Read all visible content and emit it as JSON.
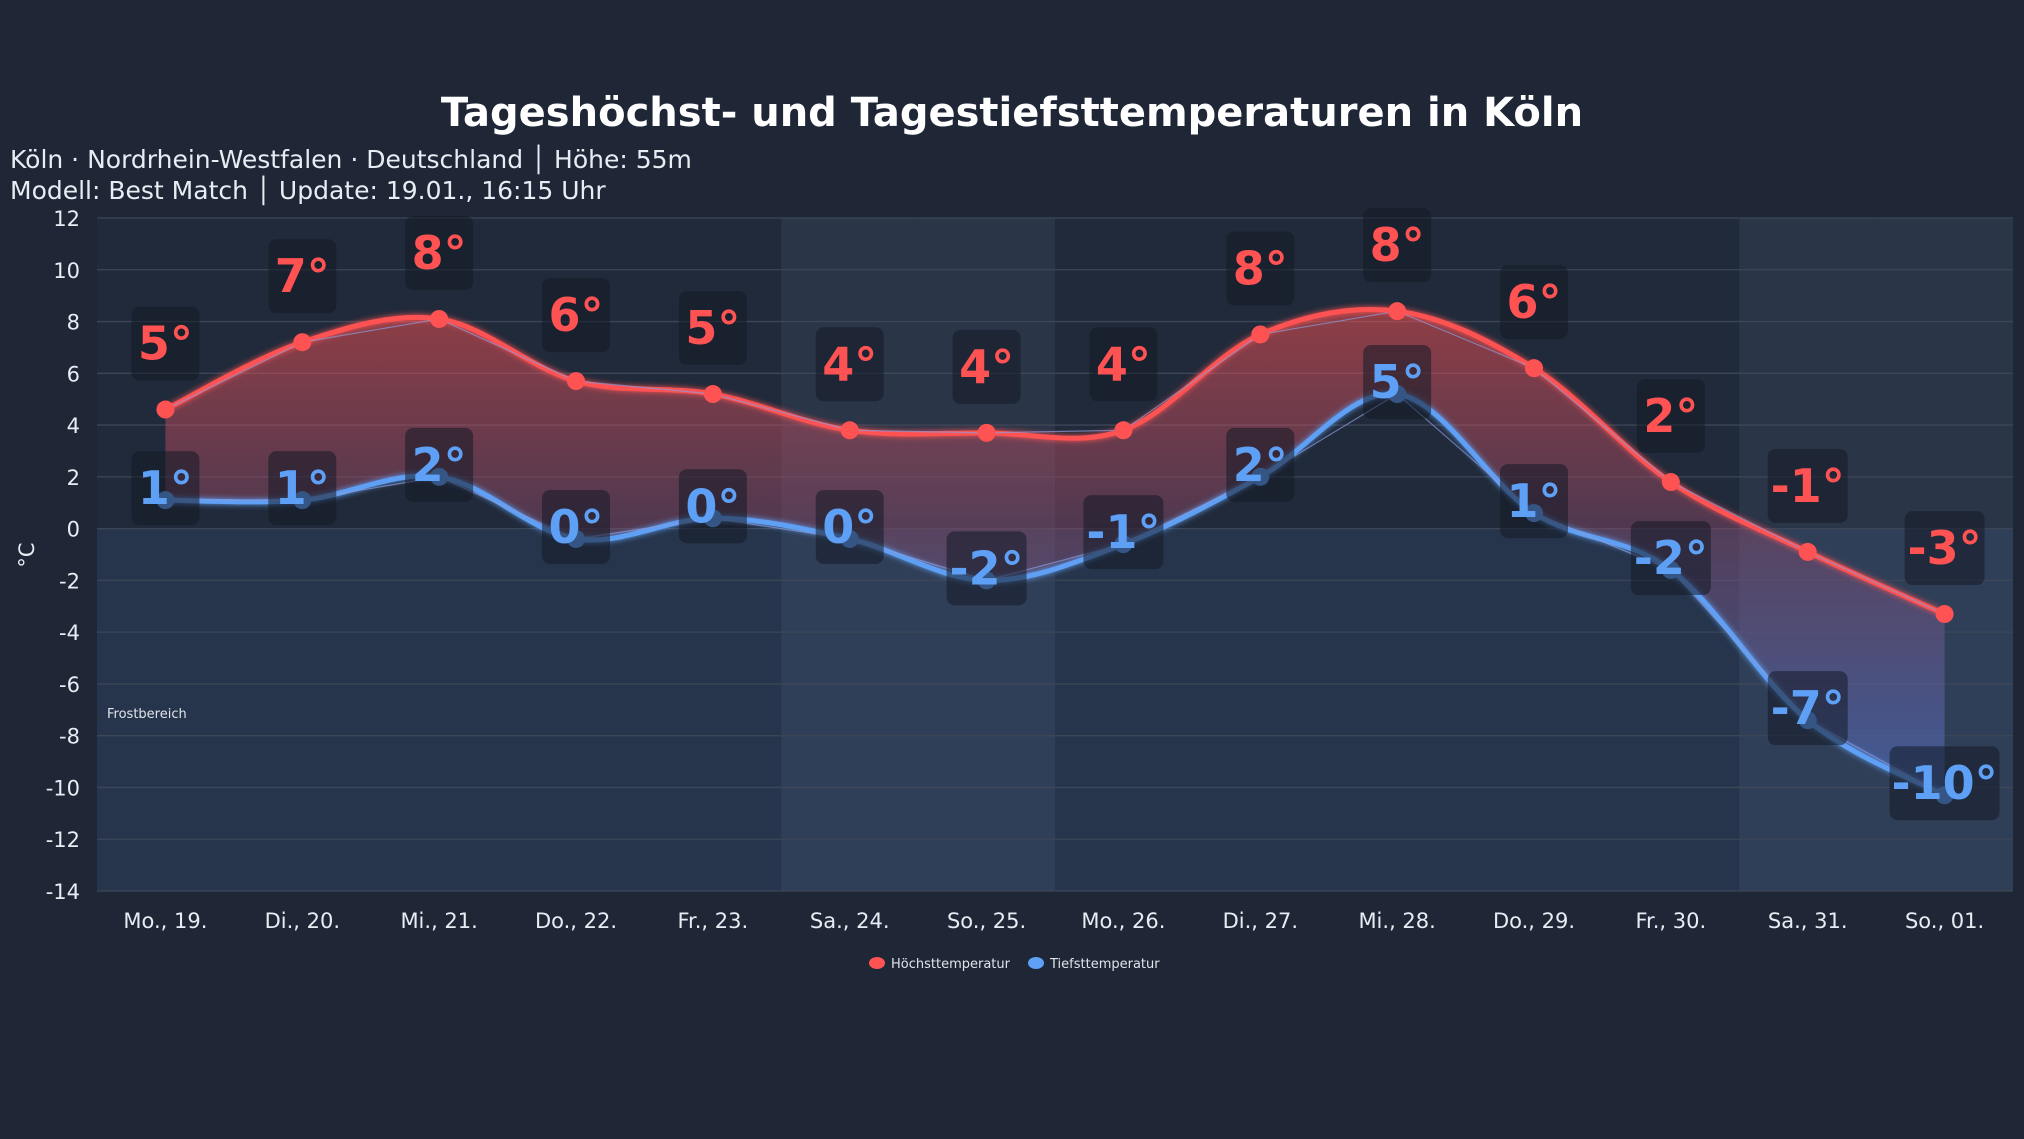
{
  "chart_data": {
    "type": "line",
    "title": "Tageshöchst- und Tagestiefsttemperaturen in Köln",
    "subtitle_lines": [
      "Köln · Nordrhein-Westfalen · Deutschland │ Höhe: 55m",
      "Modell: Best Match │ Update: 19.01., 16:15 Uhr"
    ],
    "ylabel": "°C",
    "xlabel": "",
    "ylim": [
      -14,
      12
    ],
    "yticks": [
      12,
      10,
      8,
      6,
      4,
      2,
      0,
      -2,
      -4,
      -6,
      -8,
      -10,
      -12,
      -14
    ],
    "grid": true,
    "legend_position": "bottom",
    "categories": [
      "Mo., 19.",
      "Di., 20.",
      "Mi., 21.",
      "Do., 22.",
      "Fr., 23.",
      "Sa., 24.",
      "So., 25.",
      "Mo., 26.",
      "Di., 27.",
      "Mi., 28.",
      "Do., 29.",
      "Fr., 30.",
      "Sa., 31.",
      "So., 01."
    ],
    "weekend_indices": [
      5,
      6,
      12,
      13
    ],
    "frost_zone_label": "Frostbereich",
    "series": [
      {
        "name": "Höchsttemperatur",
        "color": "#ff5252",
        "values": [
          4.6,
          7.2,
          8.1,
          5.7,
          5.2,
          3.8,
          3.7,
          3.8,
          7.5,
          8.4,
          6.2,
          1.8,
          -0.9,
          -3.3
        ],
        "labels": [
          "5°",
          "7°",
          "8°",
          "6°",
          "5°",
          "4°",
          "4°",
          "4°",
          "8°",
          "8°",
          "6°",
          "2°",
          "-1°",
          "-3°"
        ]
      },
      {
        "name": "Tiefsttemperatur",
        "color": "#5ea0f5",
        "values": [
          1.1,
          1.1,
          2.0,
          -0.4,
          0.4,
          -0.4,
          -2.0,
          -0.6,
          2.0,
          5.2,
          0.6,
          -1.6,
          -7.4,
          -10.3
        ],
        "labels": [
          "1°",
          "1°",
          "2°",
          "0°",
          "0°",
          "0°",
          "-2°",
          "-1°",
          "2°",
          "5°",
          "1°",
          "-2°",
          "-7°",
          "-10°"
        ]
      }
    ]
  }
}
